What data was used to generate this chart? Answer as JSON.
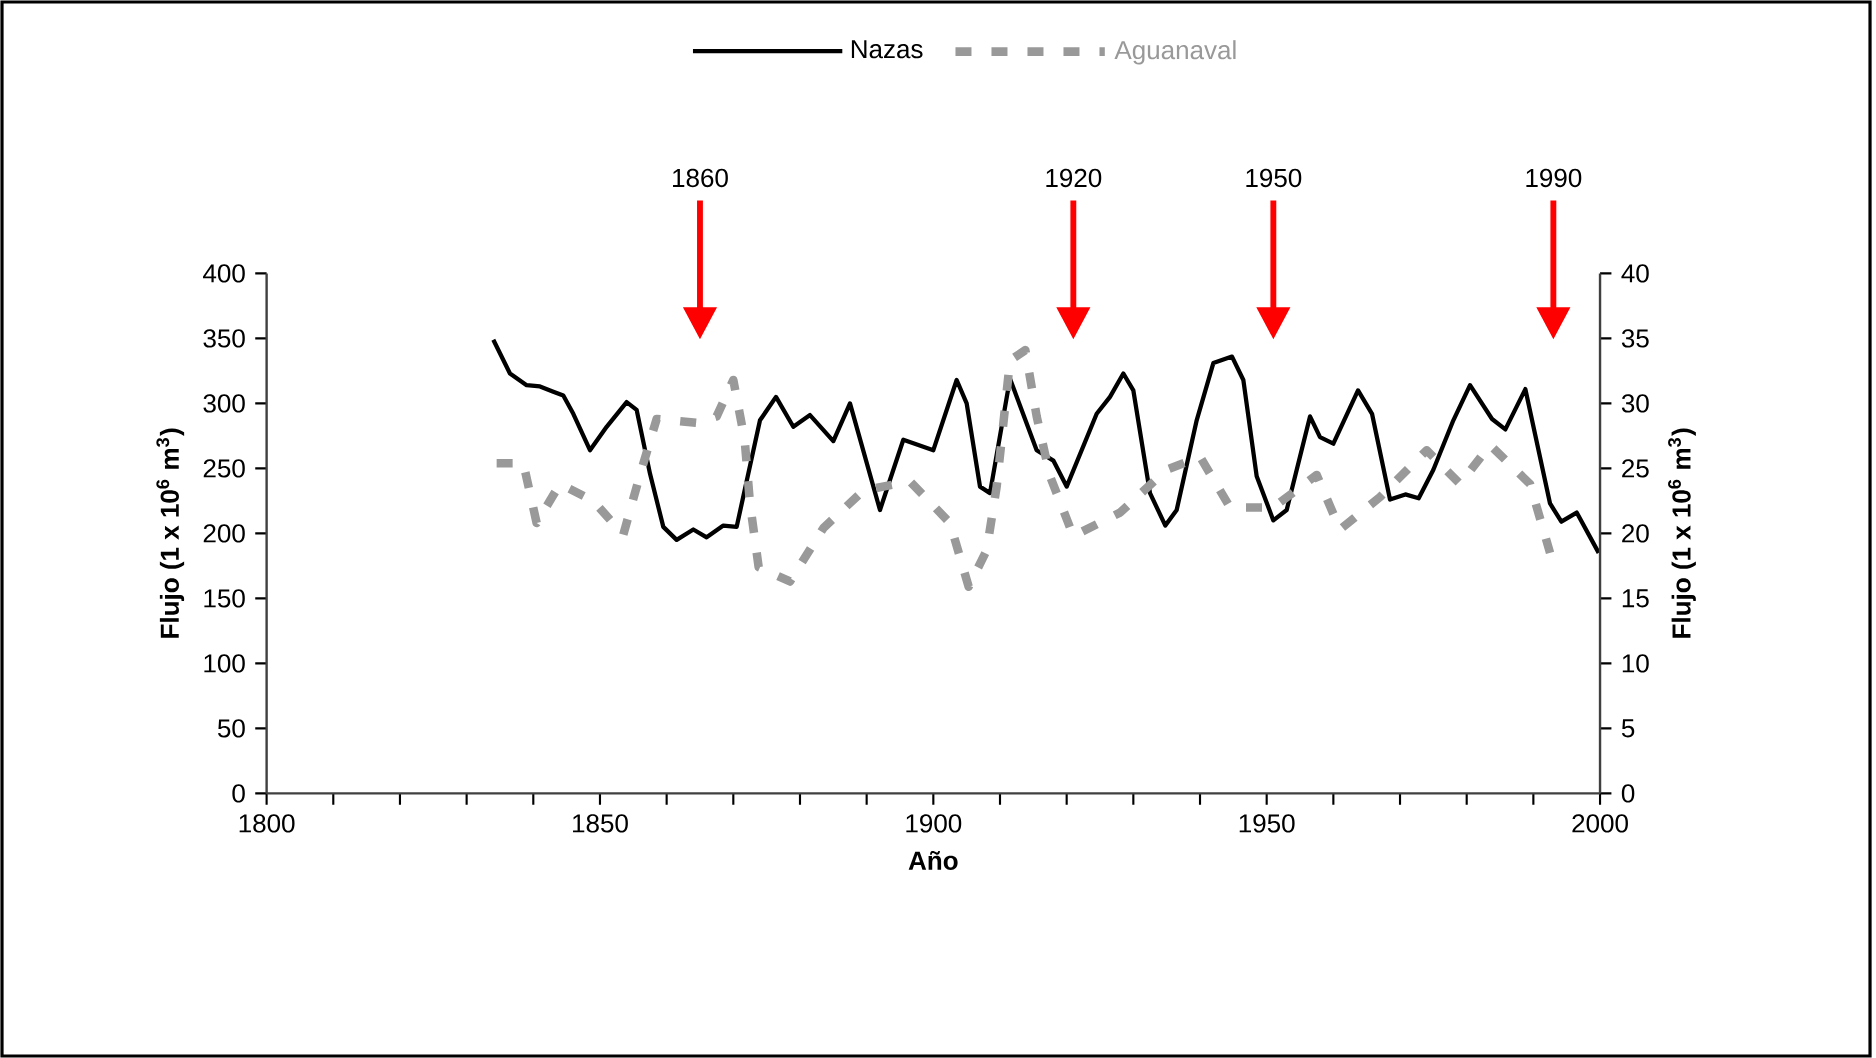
{
  "chart_data": {
    "type": "line",
    "xlabel": "Año",
    "ylabel": "Flujo (1 x 10$^{6}$ m$^{3}$)",
    "y2label": "Flujo (1 x 10$^{6}$ m$^{3}$)",
    "xlim": [
      1800,
      2000
    ],
    "xticks": [
      1800,
      {
        "value": 1810,
        "label": null
      },
      {
        "value": 1820,
        "label": null
      },
      {
        "value": 1830,
        "label": null
      },
      {
        "value": 1840,
        "label": null
      },
      1850,
      {
        "value": 1860,
        "label": null
      },
      {
        "value": 1870,
        "label": null
      },
      {
        "value": 1880,
        "label": null
      },
      {
        "value": 1890,
        "label": null
      },
      1900,
      {
        "value": 1910,
        "label": null
      },
      {
        "value": 1920,
        "label": null
      },
      {
        "value": 1930,
        "label": null
      },
      {
        "value": 1940,
        "label": null
      },
      1950,
      {
        "value": 1960,
        "label": null
      },
      {
        "value": 1970,
        "label": null
      },
      {
        "value": 1980,
        "label": null
      },
      {
        "value": 1990,
        "label": null
      },
      2000
    ],
    "ylim": [
      0,
      400
    ],
    "yticks": [
      0,
      50,
      100,
      150,
      200,
      250,
      300,
      350,
      400
    ],
    "y2lim": [
      0,
      40
    ],
    "y2ticks": [
      0,
      5,
      10,
      15,
      20,
      25,
      30,
      35,
      40
    ],
    "legend": "top",
    "grid": false,
    "marker": "none",
    "annotations": [
      "1860",
      "1920",
      "1950",
      "1990"
    ],
    "series": [
      {
        "name": "Nazas",
        "color": "#000000",
        "line_style": "solid",
        "x": [
          1834,
          1836.5,
          1839,
          1841,
          1843,
          1844.5,
          1846,
          1848.5,
          1851,
          1854,
          1855.5,
          1857.5,
          1859.5,
          1861.5,
          1864,
          1866,
          1868.5,
          1870.5,
          1874,
          1876.4,
          1879,
          1881.5,
          1885,
          1887.5,
          1892,
          1895.5,
          1900,
          1903.5,
          1905,
          1907,
          1908.5,
          1911.5,
          1915.5,
          1918,
          1920,
          1924.5,
          1926.5,
          1928.5,
          1930,
          1932.5,
          1934.8,
          1936.5,
          1939.5,
          1942,
          1944.8,
          1946.5,
          1948.5,
          1951,
          1953,
          1956.5,
          1958,
          1960,
          1963.7,
          1965.8,
          1968.5,
          1970.8,
          1972.8,
          1975,
          1978,
          1980.5,
          1983.8,
          1985.8,
          1988.8,
          1992.5,
          1994.2,
          1996.5,
          1999.8
        ],
        "values": [
          349,
          323,
          314,
          313,
          309,
          306,
          292,
          264,
          282,
          301,
          295,
          246,
          205,
          195,
          203,
          197,
          206,
          205,
          287,
          305,
          282,
          291,
          271,
          300,
          218,
          272,
          264,
          318,
          300,
          236,
          231,
          319,
          264,
          256,
          236,
          292,
          305,
          323,
          310,
          231,
          206,
          218,
          287,
          331,
          336,
          318,
          244,
          210,
          218,
          290,
          274,
          269,
          310,
          292,
          226,
          230,
          227,
          249,
          287,
          314,
          288,
          280,
          311,
          223,
          209,
          216,
          185
        ]
      },
      {
        "name": "Aguanaval",
        "color": "#999999",
        "line_style": "dashed",
        "axis": "y2",
        "x": [
          1834.5,
          1838.5,
          1840.5,
          1844,
          1849,
          1853.5,
          1856,
          1858.5,
          1864.5,
          1867.5,
          1870,
          1871.7,
          1872.5,
          1873.8,
          1878.5,
          1883.5,
          1889.5,
          1896.5,
          1902.5,
          1905.3,
          1908,
          1909.5,
          1911.5,
          1913.8,
          1915.5,
          1917.5,
          1921,
          1928,
          1935,
          1940,
          1944.5,
          1951,
          1957.5,
          1961,
          1967,
          1974,
          1979,
          1983.5,
          1989.5,
          1992.5
        ],
        "values": [
          25.4,
          25.4,
          20.8,
          23.8,
          22.5,
          19.9,
          24.5,
          28.8,
          28.5,
          29.0,
          31.8,
          27.2,
          22.3,
          17.4,
          16.3,
          20.4,
          23.3,
          24.0,
          20.8,
          15.9,
          18.7,
          23.6,
          33.3,
          34.1,
          29.0,
          24.4,
          19.8,
          21.6,
          24.9,
          25.9,
          22.0,
          22.0,
          24.5,
          20.3,
          22.8,
          26.4,
          23.8,
          26.8,
          23.8,
          18.5
        ]
      }
    ]
  }
}
